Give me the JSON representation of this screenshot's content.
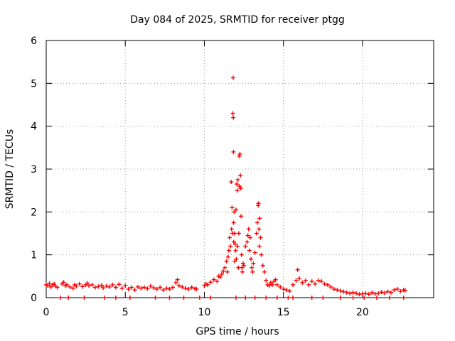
{
  "chart_data": {
    "type": "scatter",
    "title": "Day 084 of 2025, SRMTID for receiver ptgg",
    "xlabel": "GPS time / hours",
    "ylabel": "SRMTID / TECUs",
    "xlim": [
      0,
      24.5
    ],
    "ylim": [
      0,
      6
    ],
    "x_ticks": [
      0,
      5,
      10,
      15,
      20
    ],
    "y_ticks": [
      0,
      1,
      2,
      3,
      4,
      5,
      6
    ],
    "grid": true,
    "series": [
      {
        "name": "SRMTID",
        "marker": "+",
        "color": "#ff0000",
        "x": [
          0.0,
          0.1,
          0.2,
          0.3,
          0.4,
          0.5,
          0.6,
          0.7,
          1.0,
          1.1,
          1.2,
          1.3,
          1.5,
          1.7,
          1.8,
          1.9,
          2.1,
          2.3,
          2.5,
          2.6,
          2.7,
          2.9,
          3.1,
          3.3,
          3.5,
          3.6,
          3.8,
          4.0,
          4.2,
          4.4,
          4.6,
          4.8,
          5.0,
          5.2,
          5.4,
          5.6,
          5.8,
          6.0,
          6.2,
          6.4,
          6.6,
          6.8,
          7.0,
          7.2,
          7.4,
          7.6,
          7.8,
          8.0,
          8.2,
          8.3,
          8.4,
          8.6,
          8.8,
          9.0,
          9.2,
          9.4,
          9.5,
          10.0,
          10.1,
          10.2,
          10.4,
          10.6,
          10.8,
          10.9,
          11.0,
          11.1,
          11.2,
          11.3,
          11.4,
          11.45,
          11.5,
          11.55,
          11.6,
          11.65,
          11.7,
          11.72,
          11.75,
          11.78,
          11.8,
          11.82,
          11.83,
          11.84,
          11.85,
          11.86,
          11.88,
          11.9,
          11.92,
          11.95,
          11.98,
          12.0,
          12.02,
          12.05,
          12.08,
          12.1,
          12.12,
          12.15,
          12.18,
          12.2,
          12.22,
          12.25,
          12.28,
          12.3,
          12.32,
          12.35,
          12.38,
          12.4,
          12.45,
          12.5,
          12.6,
          12.7,
          12.75,
          12.8,
          12.85,
          12.9,
          12.95,
          13.0,
          13.05,
          13.1,
          13.2,
          13.3,
          13.35,
          13.4,
          13.42,
          13.45,
          13.48,
          13.5,
          13.55,
          13.6,
          13.7,
          13.8,
          13.9,
          14.0,
          14.1,
          14.2,
          14.3,
          14.4,
          14.5,
          14.6,
          14.8,
          15.0,
          15.2,
          15.4,
          15.6,
          15.8,
          15.9,
          16.0,
          16.2,
          16.4,
          16.6,
          16.8,
          17.0,
          17.2,
          17.4,
          17.6,
          17.8,
          18.0,
          18.2,
          18.4,
          18.6,
          18.8,
          19.0,
          19.2,
          19.4,
          19.6,
          19.8,
          20.0,
          20.2,
          20.4,
          20.6,
          20.8,
          21.0,
          21.2,
          21.4,
          21.6,
          21.8,
          22.0,
          22.2,
          22.4,
          22.6,
          22.7,
          0.9,
          1.4,
          2.4,
          3.7,
          4.4,
          5.3,
          6.9,
          7.8,
          8.7,
          9.7,
          10.4,
          12.0,
          12.6,
          13.2,
          13.9,
          14.6,
          15.3,
          15.6,
          16.8,
          17.5,
          18.6,
          19.4,
          20.1,
          20.9,
          21.7,
          22.6
        ],
        "y": [
          0.3,
          0.28,
          0.33,
          0.25,
          0.3,
          0.32,
          0.27,
          0.24,
          0.32,
          0.36,
          0.28,
          0.3,
          0.25,
          0.22,
          0.3,
          0.27,
          0.32,
          0.26,
          0.3,
          0.34,
          0.28,
          0.3,
          0.24,
          0.26,
          0.29,
          0.23,
          0.27,
          0.25,
          0.3,
          0.24,
          0.31,
          0.22,
          0.28,
          0.2,
          0.24,
          0.18,
          0.25,
          0.22,
          0.24,
          0.21,
          0.27,
          0.23,
          0.2,
          0.24,
          0.18,
          0.22,
          0.2,
          0.24,
          0.35,
          0.42,
          0.28,
          0.25,
          0.22,
          0.2,
          0.24,
          0.21,
          0.2,
          0.28,
          0.32,
          0.3,
          0.36,
          0.42,
          0.38,
          0.5,
          0.48,
          0.55,
          0.62,
          0.7,
          0.85,
          0.6,
          0.95,
          1.1,
          1.4,
          1.2,
          2.7,
          1.6,
          2.1,
          1.5,
          4.3,
          5.13,
          4.2,
          3.4,
          1.75,
          1.3,
          2.0,
          1.5,
          0.85,
          1.25,
          1.1,
          2.05,
          0.9,
          2.65,
          2.5,
          1.2,
          2.75,
          0.7,
          1.5,
          3.3,
          2.6,
          3.35,
          2.85,
          2.55,
          1.9,
          1.0,
          0.7,
          0.6,
          0.8,
          0.75,
          1.2,
          1.3,
          1.45,
          1.6,
          1.1,
          1.4,
          0.9,
          0.7,
          0.6,
          0.8,
          1.05,
          1.5,
          1.75,
          2.15,
          2.2,
          1.6,
          1.2,
          1.85,
          1.4,
          1.0,
          0.75,
          0.6,
          0.4,
          0.3,
          0.28,
          0.35,
          0.3,
          0.38,
          0.42,
          0.3,
          0.25,
          0.2,
          0.18,
          0.15,
          0.3,
          0.4,
          0.65,
          0.45,
          0.35,
          0.4,
          0.3,
          0.38,
          0.32,
          0.4,
          0.38,
          0.32,
          0.3,
          0.25,
          0.2,
          0.18,
          0.16,
          0.14,
          0.12,
          0.1,
          0.12,
          0.1,
          0.08,
          0.09,
          0.1,
          0.08,
          0.12,
          0.09,
          0.1,
          0.13,
          0.11,
          0.14,
          0.12,
          0.18,
          0.2,
          0.15,
          0.18,
          0.17,
          0.0,
          0.0,
          0.0,
          0.0,
          0.0,
          0.0,
          0.0,
          0.0,
          0.0,
          0.0,
          0.0,
          0.0,
          0.0,
          0.0,
          0.0,
          0.0,
          0.0,
          0.0,
          0.0,
          0.0,
          0.0,
          0.0,
          0.0,
          0.0,
          0.0,
          0.0
        ]
      }
    ]
  }
}
